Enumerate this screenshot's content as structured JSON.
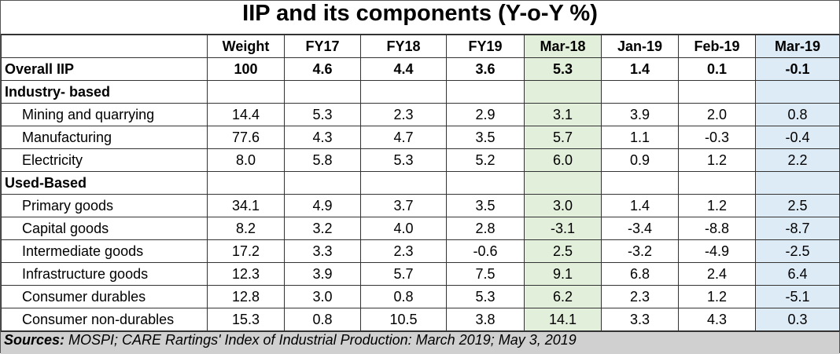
{
  "title": "IIP and its components (Y-o-Y %)",
  "highlight_colors": {
    "Mar-18": "#e2efda",
    "Mar-19": "#ddebf7",
    "sources_bg": "#d0d0d0"
  },
  "columns": [
    "Weight",
    "FY17",
    "FY18",
    "FY19",
    "Mar-18",
    "Jan-19",
    "Feb-19",
    "Mar-19"
  ],
  "rows": [
    {
      "type": "overall",
      "label": "Overall IIP",
      "values": [
        "100",
        "4.6",
        "4.4",
        "3.6",
        "5.3",
        "1.4",
        "0.1",
        "-0.1"
      ]
    },
    {
      "type": "section",
      "label": "Industry- based",
      "values": [
        "",
        "",
        "",
        "",
        "",
        "",
        "",
        ""
      ]
    },
    {
      "type": "item",
      "label": "Mining and quarrying",
      "values": [
        "14.4",
        "5.3",
        "2.3",
        "2.9",
        "3.1",
        "3.9",
        "2.0",
        "0.8"
      ]
    },
    {
      "type": "item",
      "label": "Manufacturing",
      "values": [
        "77.6",
        "4.3",
        "4.7",
        "3.5",
        "5.7",
        "1.1",
        "-0.3",
        "-0.4"
      ]
    },
    {
      "type": "item",
      "label": "Electricity",
      "values": [
        "8.0",
        "5.8",
        "5.3",
        "5.2",
        "6.0",
        "0.9",
        "1.2",
        "2.2"
      ]
    },
    {
      "type": "section",
      "label": "Used-Based",
      "values": [
        "",
        "",
        "",
        "",
        "",
        "",
        "",
        ""
      ]
    },
    {
      "type": "item",
      "label": "Primary goods",
      "values": [
        "34.1",
        "4.9",
        "3.7",
        "3.5",
        "3.0",
        "1.4",
        "1.2",
        "2.5"
      ]
    },
    {
      "type": "item",
      "label": "Capital goods",
      "values": [
        "8.2",
        "3.2",
        "4.0",
        "2.8",
        "-3.1",
        "-3.4",
        "-8.8",
        "-8.7"
      ]
    },
    {
      "type": "item",
      "label": "Intermediate goods",
      "values": [
        "17.2",
        "3.3",
        "2.3",
        "-0.6",
        "2.5",
        "-3.2",
        "-4.9",
        "-2.5"
      ]
    },
    {
      "type": "item",
      "label": "Infrastructure goods",
      "values": [
        "12.3",
        "3.9",
        "5.7",
        "7.5",
        "9.1",
        "6.8",
        "2.4",
        "6.4"
      ]
    },
    {
      "type": "item",
      "label": "Consumer durables",
      "values": [
        "12.8",
        "3.0",
        "0.8",
        "5.3",
        "6.2",
        "2.3",
        "1.2",
        "-5.1"
      ]
    },
    {
      "type": "item",
      "label": "Consumer non-durables",
      "values": [
        "15.3",
        "0.8",
        "10.5",
        "3.8",
        "14.1",
        "3.3",
        "4.3",
        "0.3"
      ]
    }
  ],
  "sources": {
    "label": "Sources:",
    "text": " MOSPI; CARE Rartings' Index of Industrial Production: March 2019; May 3, 2019"
  }
}
